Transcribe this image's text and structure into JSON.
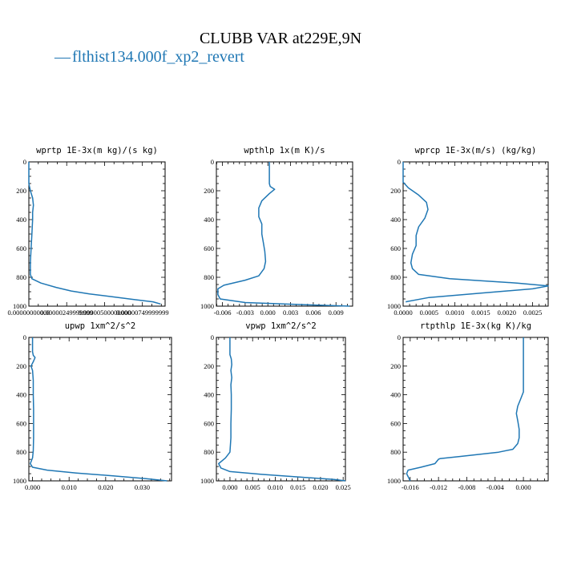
{
  "page": {
    "title": "CLUBB VAR at229E,9N",
    "legend": {
      "dash": "—",
      "label": "flthist134.000f_xp2_revert",
      "color": "#1f77b4"
    }
  },
  "chart_data": [
    {
      "type": "line",
      "title": "wprtp  1E-3x(m kg)/(s kg)",
      "xlim": [
        0.0,
        9e-06
      ],
      "ylim": [
        0,
        1000
      ],
      "y_inverted": true,
      "xticks": [
        0.0,
        2.5e-06,
        5e-06,
        7.5e-06
      ],
      "xtick_labels": [
        "0.00000000000",
        "0.00000249999999",
        "0.00000500000000",
        "0.00000749999999"
      ],
      "yticks": [
        0,
        200,
        400,
        600,
        800,
        1000
      ],
      "ytick_labels": [
        "0",
        "200",
        "400",
        "600",
        "800",
        "1000"
      ],
      "series": [
        {
          "color": "#1f77b4",
          "x": [
            0.0,
            0.0,
            1e-07,
            2.5e-07,
            3e-07,
            2.5e-07,
            2.5e-07,
            2e-07,
            1.5e-07,
            1e-07,
            1e-07,
            2e-07,
            8e-07,
            1.8e-06,
            2.8e-06,
            4e-06,
            5.5e-06,
            7e-06,
            8.2e-06,
            8.7e-06
          ],
          "y": [
            0,
            150,
            200,
            250,
            300,
            350,
            400,
            500,
            600,
            700,
            780,
            810,
            840,
            870,
            895,
            915,
            935,
            955,
            970,
            985
          ]
        }
      ]
    },
    {
      "type": "line",
      "title": "wpthlp  1x(m K)/s",
      "xlim": [
        -0.0068,
        0.0112
      ],
      "ylim": [
        0,
        1000
      ],
      "y_inverted": true,
      "xticks": [
        -0.006,
        -0.003,
        0.0,
        0.003,
        0.006,
        0.009
      ],
      "xtick_labels": [
        "-0.006",
        "-0.003",
        "0.000",
        "0.003",
        "0.006",
        "0.009"
      ],
      "yticks": [
        0,
        200,
        400,
        600,
        800,
        1000
      ],
      "ytick_labels": [
        "0",
        "200",
        "400",
        "600",
        "800",
        "1000"
      ],
      "series": [
        {
          "color": "#1f77b4",
          "x": [
            0.0002,
            0.0002,
            0.0003,
            0.0009,
            0.0002,
            -0.0008,
            -0.0012,
            -0.0012,
            -0.0008,
            -0.0008,
            -0.0006,
            -0.0004,
            -0.0003,
            -0.0005,
            -0.0012,
            -0.003,
            -0.0058,
            -0.0066,
            -0.0066,
            -0.0063,
            -0.003,
            0.005,
            0.0108
          ],
          "y": [
            0,
            150,
            170,
            190,
            220,
            270,
            320,
            380,
            430,
            500,
            560,
            620,
            690,
            740,
            790,
            820,
            855,
            880,
            920,
            950,
            975,
            990,
            1000
          ]
        }
      ]
    },
    {
      "type": "line",
      "title": "wprcp  1E-3x(m/s) (kg/kg)",
      "xlim": [
        0.0,
        0.0028
      ],
      "ylim": [
        0,
        1000
      ],
      "y_inverted": true,
      "xticks": [
        0.0,
        0.0005,
        0.001,
        0.0015,
        0.002,
        0.0025
      ],
      "xtick_labels": [
        "0.0000",
        "0.0005",
        "0.0010",
        "0.0015",
        "0.0020",
        "0.0025"
      ],
      "yticks": [
        0,
        200,
        400,
        600,
        800,
        1000
      ],
      "ytick_labels": [
        "0",
        "200",
        "400",
        "600",
        "800",
        "1000"
      ],
      "series": [
        {
          "color": "#1f77b4",
          "x": [
            0.0,
            0.0,
            0.0001,
            0.0003,
            0.00045,
            0.00048,
            0.00042,
            0.0003,
            0.00025,
            0.00025,
            0.00018,
            0.00015,
            0.00018,
            0.0003,
            0.0009,
            0.0022,
            0.0028,
            0.0025,
            0.0015,
            0.0005,
            5e-05
          ],
          "y": [
            0,
            140,
            180,
            230,
            280,
            330,
            390,
            450,
            510,
            580,
            640,
            700,
            740,
            780,
            810,
            840,
            860,
            880,
            910,
            940,
            970
          ]
        }
      ]
    },
    {
      "type": "line",
      "title": "upwp  1xm^2/s^2",
      "xlim": [
        -0.001,
        0.038
      ],
      "ylim": [
        0,
        1000
      ],
      "y_inverted": true,
      "xticks": [
        0.0,
        0.01,
        0.02,
        0.03
      ],
      "xtick_labels": [
        "0.000",
        "0.010",
        "0.020",
        "0.030"
      ],
      "yticks": [
        0,
        200,
        400,
        600,
        800,
        1000
      ],
      "ytick_labels": [
        "0",
        "200",
        "400",
        "600",
        "800",
        "1000"
      ],
      "series": [
        {
          "color": "#1f77b4",
          "x": [
            0.0,
            0.0,
            0.0002,
            0.0007,
            0.0002,
            -0.0004,
            0.0,
            0.0002,
            0.0002,
            0.0003,
            0.0003,
            0.0003,
            0.0002,
            0.0,
            -0.0006,
            0.0,
            0.004,
            0.012,
            0.022,
            0.031,
            0.0368
          ],
          "y": [
            0,
            100,
            125,
            140,
            170,
            200,
            230,
            300,
            400,
            500,
            600,
            700,
            790,
            840,
            880,
            905,
            925,
            945,
            965,
            985,
            1000
          ]
        }
      ]
    },
    {
      "type": "line",
      "title": "vpwp  1xm^2/s^2",
      "xlim": [
        -0.003,
        0.0255
      ],
      "ylim": [
        0,
        1000
      ],
      "y_inverted": true,
      "xticks": [
        0.0,
        0.005,
        0.01,
        0.015,
        0.02,
        0.025
      ],
      "xtick_labels": [
        "0.000",
        "0.005",
        "0.010",
        "0.015",
        "0.020",
        "0.025"
      ],
      "yticks": [
        0,
        200,
        400,
        600,
        800,
        1000
      ],
      "ytick_labels": [
        "0",
        "200",
        "400",
        "600",
        "800",
        "1000"
      ],
      "series": [
        {
          "color": "#1f77b4",
          "x": [
            0.0,
            0.0,
            0.0003,
            0.0004,
            0.0002,
            0.0004,
            0.0002,
            0.0003,
            0.0003,
            0.0002,
            0.0002,
            0.0,
            -0.001,
            -0.0025,
            -0.002,
            0.0,
            0.007,
            0.016,
            0.023,
            0.0255
          ],
          "y": [
            0,
            120,
            150,
            190,
            230,
            280,
            330,
            400,
            500,
            600,
            700,
            800,
            840,
            880,
            910,
            935,
            955,
            975,
            990,
            1000
          ]
        }
      ]
    },
    {
      "type": "line",
      "title": "rtpthlp  1E-3x(kg K)/kg",
      "xlim": [
        -0.017,
        0.0035
      ],
      "ylim": [
        0,
        1000
      ],
      "y_inverted": true,
      "xticks": [
        -0.016,
        -0.012,
        -0.008,
        -0.004,
        0.0
      ],
      "xtick_labels": [
        "-0.016",
        "-0.012",
        "-0.008",
        "-0.004",
        "0.000"
      ],
      "yticks": [
        0,
        200,
        400,
        600,
        800,
        1000
      ],
      "ytick_labels": [
        "0",
        "200",
        "400",
        "600",
        "800",
        "1000"
      ],
      "series": [
        {
          "color": "#1f77b4",
          "x": [
            0.0,
            0.0,
            0.0,
            -0.0004,
            -0.0008,
            -0.001,
            -0.0008,
            -0.0006,
            -0.0006,
            -0.0008,
            -0.0015,
            -0.0035,
            -0.009,
            -0.0118,
            -0.012,
            -0.0125,
            -0.0145,
            -0.0163,
            -0.0165,
            -0.016
          ],
          "y": [
            0,
            200,
            380,
            430,
            480,
            530,
            580,
            640,
            700,
            740,
            780,
            800,
            830,
            845,
            850,
            880,
            905,
            925,
            950,
            1000
          ]
        }
      ]
    }
  ]
}
